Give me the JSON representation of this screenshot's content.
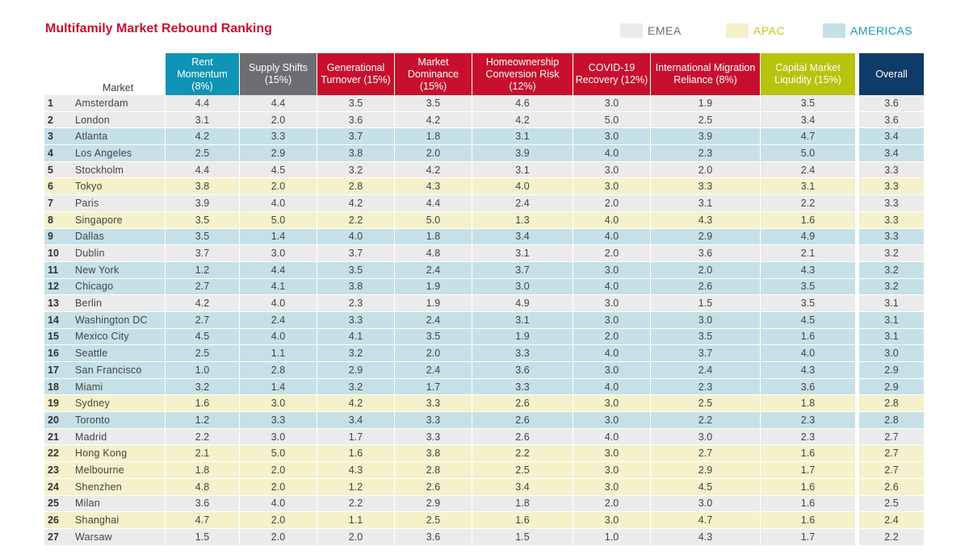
{
  "title": "Multifamily Market Rebound Ranking",
  "legend": [
    {
      "label": "EMEA",
      "region": "emea",
      "swatch_color": "#ebebeb",
      "text_color": "#6d6e71"
    },
    {
      "label": "APAC",
      "region": "apac",
      "swatch_color": "#f4f1cb",
      "text_color": "#c6c81a"
    },
    {
      "label": "AMERICAS",
      "region": "americas",
      "swatch_color": "#c5e0e7",
      "text_color": "#1a9cb8"
    }
  ],
  "chart_data": {
    "type": "table",
    "title": "Multifamily Market Rebound Ranking",
    "columns": [
      {
        "key": "rank",
        "label": ""
      },
      {
        "key": "market",
        "label": "Market"
      },
      {
        "key": "rent",
        "label": "Rent Momentum (8%)",
        "color": "#0f93b6"
      },
      {
        "key": "supply",
        "label": "Supply Shifts (15%)",
        "color": "#6d6e71"
      },
      {
        "key": "gen",
        "label": "Generational Turnover (15%)",
        "color": "#c8102e"
      },
      {
        "key": "dominance",
        "label": "Market Dominance (15%)",
        "color": "#c8102e"
      },
      {
        "key": "homeown",
        "label": "Homeownership Conversion Risk (12%)",
        "color": "#c8102e"
      },
      {
        "key": "covid",
        "label": "COVID-19 Recovery (12%)",
        "color": "#c8102e"
      },
      {
        "key": "migration",
        "label": "International Migration Reliance (8%)",
        "color": "#c8102e"
      },
      {
        "key": "capital",
        "label": "Capital Market Liquidity (15%)",
        "color": "#b8c30d"
      },
      {
        "key": "overall",
        "label": "Overall",
        "color": "#0e3b67"
      }
    ],
    "rows": [
      {
        "rank": "1",
        "market": "Amsterdam",
        "region": "emea",
        "values": [
          "4.4",
          "4.4",
          "3.5",
          "3.5",
          "4.6",
          "3.0",
          "1.9",
          "3.5",
          "3.6"
        ]
      },
      {
        "rank": "2",
        "market": "London",
        "region": "emea",
        "values": [
          "3.1",
          "2.0",
          "3.6",
          "4.2",
          "4.2",
          "5.0",
          "2.5",
          "3.4",
          "3.6"
        ]
      },
      {
        "rank": "3",
        "market": "Atlanta",
        "region": "americas",
        "values": [
          "4.2",
          "3.3",
          "3.7",
          "1.8",
          "3.1",
          "3.0",
          "3.9",
          "4.7",
          "3.4"
        ]
      },
      {
        "rank": "4",
        "market": "Los Angeles",
        "region": "americas",
        "values": [
          "2.5",
          "2.9",
          "3.8",
          "2.0",
          "3.9",
          "4.0",
          "2.3",
          "5.0",
          "3.4"
        ]
      },
      {
        "rank": "5",
        "market": "Stockholm",
        "region": "emea",
        "values": [
          "4.4",
          "4.5",
          "3.2",
          "4.2",
          "3.1",
          "3.0",
          "2.0",
          "2.4",
          "3.3"
        ]
      },
      {
        "rank": "6",
        "market": "Tokyo",
        "region": "apac",
        "values": [
          "3.8",
          "2.0",
          "2.8",
          "4.3",
          "4.0",
          "3.0",
          "3.3",
          "3.1",
          "3.3"
        ]
      },
      {
        "rank": "7",
        "market": "Paris",
        "region": "emea",
        "values": [
          "3.9",
          "4.0",
          "4.2",
          "4.4",
          "2.4",
          "2.0",
          "3.1",
          "2.2",
          "3.3"
        ]
      },
      {
        "rank": "8",
        "market": "Singapore",
        "region": "apac",
        "values": [
          "3.5",
          "5.0",
          "2.2",
          "5.0",
          "1.3",
          "4.0",
          "4.3",
          "1.6",
          "3.3"
        ]
      },
      {
        "rank": "9",
        "market": "Dallas",
        "region": "americas",
        "values": [
          "3.5",
          "1.4",
          "4.0",
          "1.8",
          "3.4",
          "4.0",
          "2.9",
          "4.9",
          "3.3"
        ]
      },
      {
        "rank": "10",
        "market": "Dublin",
        "region": "emea",
        "values": [
          "3.7",
          "3.0",
          "3.7",
          "4.8",
          "3.1",
          "2.0",
          "3.6",
          "2.1",
          "3.2"
        ]
      },
      {
        "rank": "11",
        "market": "New York",
        "region": "americas",
        "values": [
          "1.2",
          "4.4",
          "3.5",
          "2.4",
          "3.7",
          "3.0",
          "2.0",
          "4.3",
          "3.2"
        ]
      },
      {
        "rank": "12",
        "market": "Chicago",
        "region": "americas",
        "values": [
          "2.7",
          "4.1",
          "3.8",
          "1.9",
          "3.0",
          "4.0",
          "2.6",
          "3.5",
          "3.2"
        ]
      },
      {
        "rank": "13",
        "market": "Berlin",
        "region": "emea",
        "values": [
          "4.2",
          "4.0",
          "2.3",
          "1.9",
          "4.9",
          "3.0",
          "1.5",
          "3.5",
          "3.1"
        ]
      },
      {
        "rank": "14",
        "market": "Washington DC",
        "region": "americas",
        "values": [
          "2.7",
          "2.4",
          "3.3",
          "2.4",
          "3.1",
          "3.0",
          "3.0",
          "4.5",
          "3.1"
        ]
      },
      {
        "rank": "15",
        "market": "Mexico City",
        "region": "americas",
        "values": [
          "4.5",
          "4.0",
          "4.1",
          "3.5",
          "1.9",
          "2.0",
          "3.5",
          "1.6",
          "3.1"
        ]
      },
      {
        "rank": "16",
        "market": "Seattle",
        "region": "americas",
        "values": [
          "2.5",
          "1.1",
          "3.2",
          "2.0",
          "3.3",
          "4.0",
          "3.7",
          "4.0",
          "3.0"
        ]
      },
      {
        "rank": "17",
        "market": "San Francisco",
        "region": "americas",
        "values": [
          "1.0",
          "2.8",
          "2.9",
          "2.4",
          "3.6",
          "3.0",
          "2.4",
          "4.3",
          "2.9"
        ]
      },
      {
        "rank": "18",
        "market": "Miami",
        "region": "americas",
        "values": [
          "3.2",
          "1.4",
          "3.2",
          "1.7",
          "3.3",
          "4.0",
          "2.3",
          "3.6",
          "2.9"
        ]
      },
      {
        "rank": "19",
        "market": "Sydney",
        "region": "apac",
        "values": [
          "1.6",
          "3.0",
          "4.2",
          "3.3",
          "2.6",
          "3.0",
          "2.5",
          "1.8",
          "2.8"
        ]
      },
      {
        "rank": "20",
        "market": "Toronto",
        "region": "americas",
        "values": [
          "1.2",
          "3.3",
          "3.4",
          "3.3",
          "2.6",
          "3.0",
          "2.2",
          "2.3",
          "2.8"
        ]
      },
      {
        "rank": "21",
        "market": "Madrid",
        "region": "emea",
        "values": [
          "2.2",
          "3.0",
          "1.7",
          "3.3",
          "2.6",
          "4.0",
          "3.0",
          "2.3",
          "2.7"
        ]
      },
      {
        "rank": "22",
        "market": "Hong Kong",
        "region": "apac",
        "values": [
          "2.1",
          "5.0",
          "1.6",
          "3.8",
          "2.2",
          "3.0",
          "2.7",
          "1.6",
          "2.7"
        ]
      },
      {
        "rank": "23",
        "market": "Melbourne",
        "region": "apac",
        "values": [
          "1.8",
          "2.0",
          "4.3",
          "2.8",
          "2.5",
          "3.0",
          "2.9",
          "1.7",
          "2.7"
        ]
      },
      {
        "rank": "24",
        "market": "Shenzhen",
        "region": "apac",
        "values": [
          "4.8",
          "2.0",
          "1.2",
          "2.6",
          "3.4",
          "3.0",
          "4.5",
          "1.6",
          "2.6"
        ]
      },
      {
        "rank": "25",
        "market": "Milan",
        "region": "emea",
        "values": [
          "3.6",
          "4.0",
          "2.2",
          "2.9",
          "1.8",
          "2.0",
          "3.0",
          "1.6",
          "2.5"
        ]
      },
      {
        "rank": "26",
        "market": "Shanghai",
        "region": "apac",
        "values": [
          "4.7",
          "2.0",
          "1.1",
          "2.5",
          "1.6",
          "3.0",
          "4.7",
          "1.6",
          "2.4"
        ]
      },
      {
        "rank": "27",
        "market": "Warsaw",
        "region": "emea",
        "values": [
          "1.5",
          "2.0",
          "2.0",
          "3.6",
          "1.5",
          "1.0",
          "4.3",
          "1.7",
          "2.2"
        ]
      }
    ]
  }
}
